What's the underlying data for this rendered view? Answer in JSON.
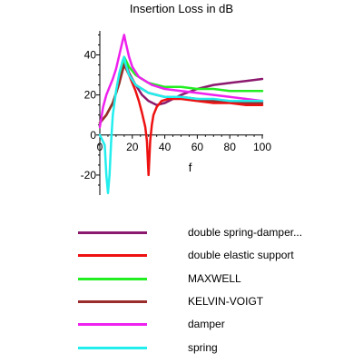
{
  "chart_data": {
    "type": "line",
    "title": "Insertion Loss in dB",
    "xlabel": "f",
    "ylabel": "",
    "xlim": [
      0,
      100
    ],
    "ylim": [
      -30,
      52
    ],
    "x_ticks": [
      0,
      20,
      40,
      60,
      80,
      100
    ],
    "y_ticks": [
      -20,
      0,
      20,
      40
    ],
    "grid": false,
    "legend_position": "bottom",
    "series": [
      {
        "name": "double spring-damper...",
        "color": "#8b1a6e",
        "x": [
          0,
          4,
          8,
          12,
          15,
          18,
          22,
          26,
          30,
          35,
          40,
          45,
          50,
          60,
          70,
          80,
          90,
          100
        ],
        "y": [
          6,
          10,
          16,
          26,
          38,
          31,
          25,
          20,
          17,
          15,
          16,
          18,
          20,
          23,
          25,
          26,
          27,
          28
        ]
      },
      {
        "name": "double elastic support",
        "color": "#ee1111",
        "x": [
          0,
          4,
          8,
          12,
          15,
          18,
          20,
          22,
          24,
          26,
          28,
          29,
          30,
          31,
          32,
          33,
          35,
          38,
          42,
          46,
          50,
          60,
          70,
          80,
          90,
          100
        ],
        "y": [
          6,
          10,
          16,
          26,
          37,
          30,
          26,
          22,
          17,
          11,
          4,
          -3,
          -20,
          -3,
          5,
          10,
          14,
          17,
          18,
          18,
          18,
          17,
          16,
          16,
          15,
          15
        ]
      },
      {
        "name": "MAXWELL",
        "color": "#22ee22",
        "x": [
          0,
          4,
          8,
          12,
          15,
          18,
          22,
          26,
          30,
          35,
          40,
          50,
          60,
          70,
          80,
          90,
          100
        ],
        "y": [
          6,
          10,
          16,
          26,
          39,
          34,
          30,
          28,
          26,
          25,
          24,
          24,
          23,
          23,
          22,
          22,
          22
        ]
      },
      {
        "name": "KELVIN-VOIGT",
        "color": "#9b2c2c",
        "x": [
          0,
          4,
          8,
          12,
          15,
          18,
          22,
          26,
          30,
          35,
          40,
          50,
          60,
          70,
          80,
          90,
          100
        ],
        "y": [
          6,
          10,
          16,
          26,
          35,
          30,
          25,
          23,
          21,
          20,
          19,
          19,
          18,
          17,
          17,
          16,
          16
        ]
      },
      {
        "name": "damper",
        "color": "#ee22ee",
        "x": [
          0,
          2,
          4,
          6,
          8,
          10,
          12,
          14,
          15,
          16,
          18,
          20,
          24,
          28,
          32,
          36,
          40,
          50,
          60,
          70,
          80,
          90,
          100
        ],
        "y": [
          4,
          14,
          20,
          24,
          28,
          33,
          40,
          47,
          50,
          46,
          39,
          34,
          29,
          27,
          25,
          24,
          23,
          22,
          21,
          20,
          19,
          18,
          17
        ]
      },
      {
        "name": "spring",
        "color": "#22eeee",
        "x": [
          0,
          3,
          4,
          5,
          6,
          7,
          8,
          10,
          12,
          14,
          15,
          16,
          18,
          22,
          26,
          30,
          35,
          40,
          50,
          60,
          70,
          80,
          90,
          100
        ],
        "y": [
          0,
          -5,
          -20,
          -29,
          -20,
          -3,
          10,
          22,
          31,
          37,
          39,
          35,
          30,
          25,
          23,
          21,
          20,
          19,
          19,
          18,
          18,
          17,
          17,
          17
        ]
      }
    ]
  }
}
